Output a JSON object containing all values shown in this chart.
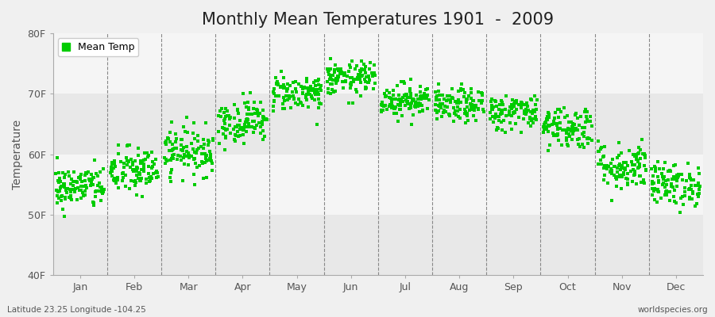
{
  "title": "Monthly Mean Temperatures 1901  -  2009",
  "ylabel": "Temperature",
  "ylim": [
    40,
    80
  ],
  "yticks": [
    40,
    50,
    60,
    70,
    80
  ],
  "ytick_labels": [
    "40F",
    "50F",
    "60F",
    "70F",
    "80F"
  ],
  "months": [
    "Jan",
    "Feb",
    "Mar",
    "Apr",
    "May",
    "Jun",
    "Jul",
    "Aug",
    "Sep",
    "Oct",
    "Nov",
    "Dec"
  ],
  "monthly_means": [
    54.5,
    57.2,
    60.5,
    65.5,
    70.2,
    72.5,
    69.0,
    68.0,
    67.0,
    64.5,
    58.0,
    55.0
  ],
  "monthly_stds": [
    1.8,
    2.0,
    2.0,
    1.8,
    1.5,
    1.4,
    1.4,
    1.4,
    1.5,
    1.8,
    2.0,
    1.8
  ],
  "n_years": 109,
  "dot_color": "#00cc00",
  "dot_size": 7,
  "dot_marker": "s",
  "background_color": "#f0f0f0",
  "band_colors": [
    "#e8e8e8",
    "#f5f5f5"
  ],
  "title_fontsize": 15,
  "legend_label": "Mean Temp",
  "bottom_left_text": "Latitude 23.25 Longitude -104.25",
  "bottom_right_text": "worldspecies.org",
  "vline_color": "#888888",
  "vline_style": "--",
  "band_boundaries": [
    40,
    50,
    60,
    70,
    80
  ]
}
